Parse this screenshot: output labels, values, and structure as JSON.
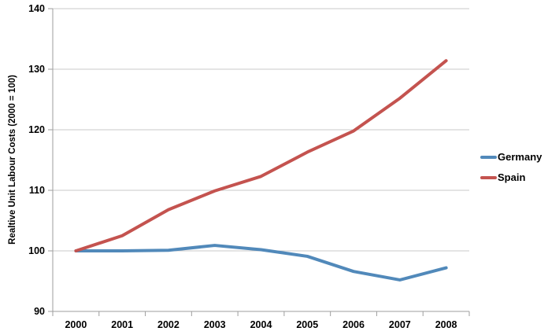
{
  "chart_data": {
    "type": "line",
    "title": "",
    "xlabel": "",
    "ylabel": "Realtive Unit Labour Costs (2000 = 100)",
    "categories": [
      "2000",
      "2001",
      "2002",
      "2003",
      "2004",
      "2005",
      "2006",
      "2007",
      "2008"
    ],
    "series": [
      {
        "name": "Germany",
        "color": "#5189BA",
        "values": [
          100,
          100,
          100.1,
          100.9,
          100.2,
          99.1,
          96.6,
          95.2,
          97.2
        ]
      },
      {
        "name": "Spain",
        "color": "#C4534F",
        "values": [
          100,
          102.5,
          106.8,
          109.9,
          112.3,
          116.3,
          119.8,
          125.2,
          131.4
        ]
      }
    ],
    "ylim": [
      90,
      140
    ],
    "yticks": [
      90,
      100,
      110,
      120,
      130,
      140
    ],
    "grid": true,
    "legend_position": "right"
  },
  "colors": {
    "axis_line": "#9E9E9E",
    "gridline": "#C9C9C9",
    "tick_text": "#000000",
    "background": "#FFFFFF"
  }
}
